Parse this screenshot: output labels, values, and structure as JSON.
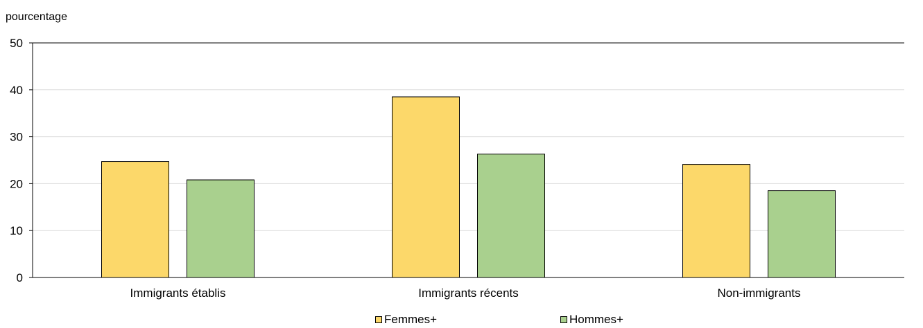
{
  "chart_data": {
    "type": "bar",
    "ylabel": "pourcentage",
    "categories": [
      "Immigrants établis",
      "Immigrants récents",
      "Non-immigrants"
    ],
    "series": [
      {
        "name": "Femmes+",
        "values": [
          24.7,
          38.5,
          24.1
        ],
        "color": "#FCD86A"
      },
      {
        "name": "Hommes+",
        "values": [
          20.8,
          26.3,
          18.5
        ],
        "color": "#A9D08E"
      }
    ],
    "ylim": [
      0,
      50
    ],
    "yticks": [
      0,
      10,
      20,
      30,
      40,
      50
    ],
    "grid": true,
    "legend_position": "bottom"
  }
}
